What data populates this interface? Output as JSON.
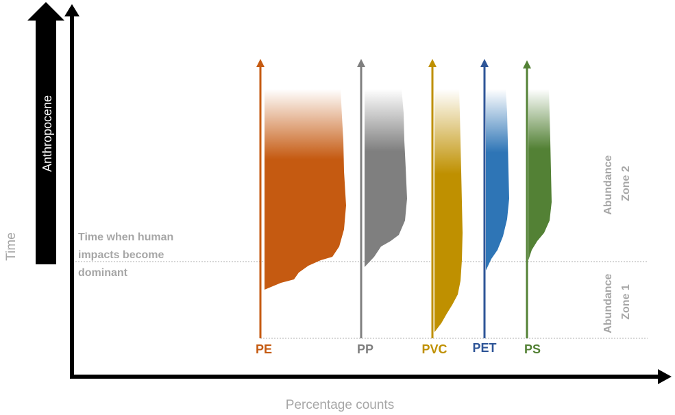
{
  "axes": {
    "x_label": "Percentage counts",
    "y_label": "Time"
  },
  "era_banner": "Anthropocene",
  "threshold_label_lines": [
    "Time when human",
    "impacts become",
    "dominant"
  ],
  "zones": {
    "zone2_lines": [
      "Abundance",
      "Zone 2"
    ],
    "zone1_lines": [
      "Abundance",
      "Zone 1"
    ]
  },
  "polymers": [
    {
      "label": "PE",
      "color": "#c55a11"
    },
    {
      "label": "PP",
      "color": "#7f7f7f"
    },
    {
      "label": "PVC",
      "color": "#bf9000"
    },
    {
      "label": "PET",
      "color": "#2e5597"
    },
    {
      "label": "PS",
      "color": "#538135"
    }
  ],
  "colors": {
    "axis": "#000000",
    "muted_text": "#a6a6a6",
    "dotted_line": "#bfbfbf",
    "pet_fill": "#2e75b6"
  }
}
